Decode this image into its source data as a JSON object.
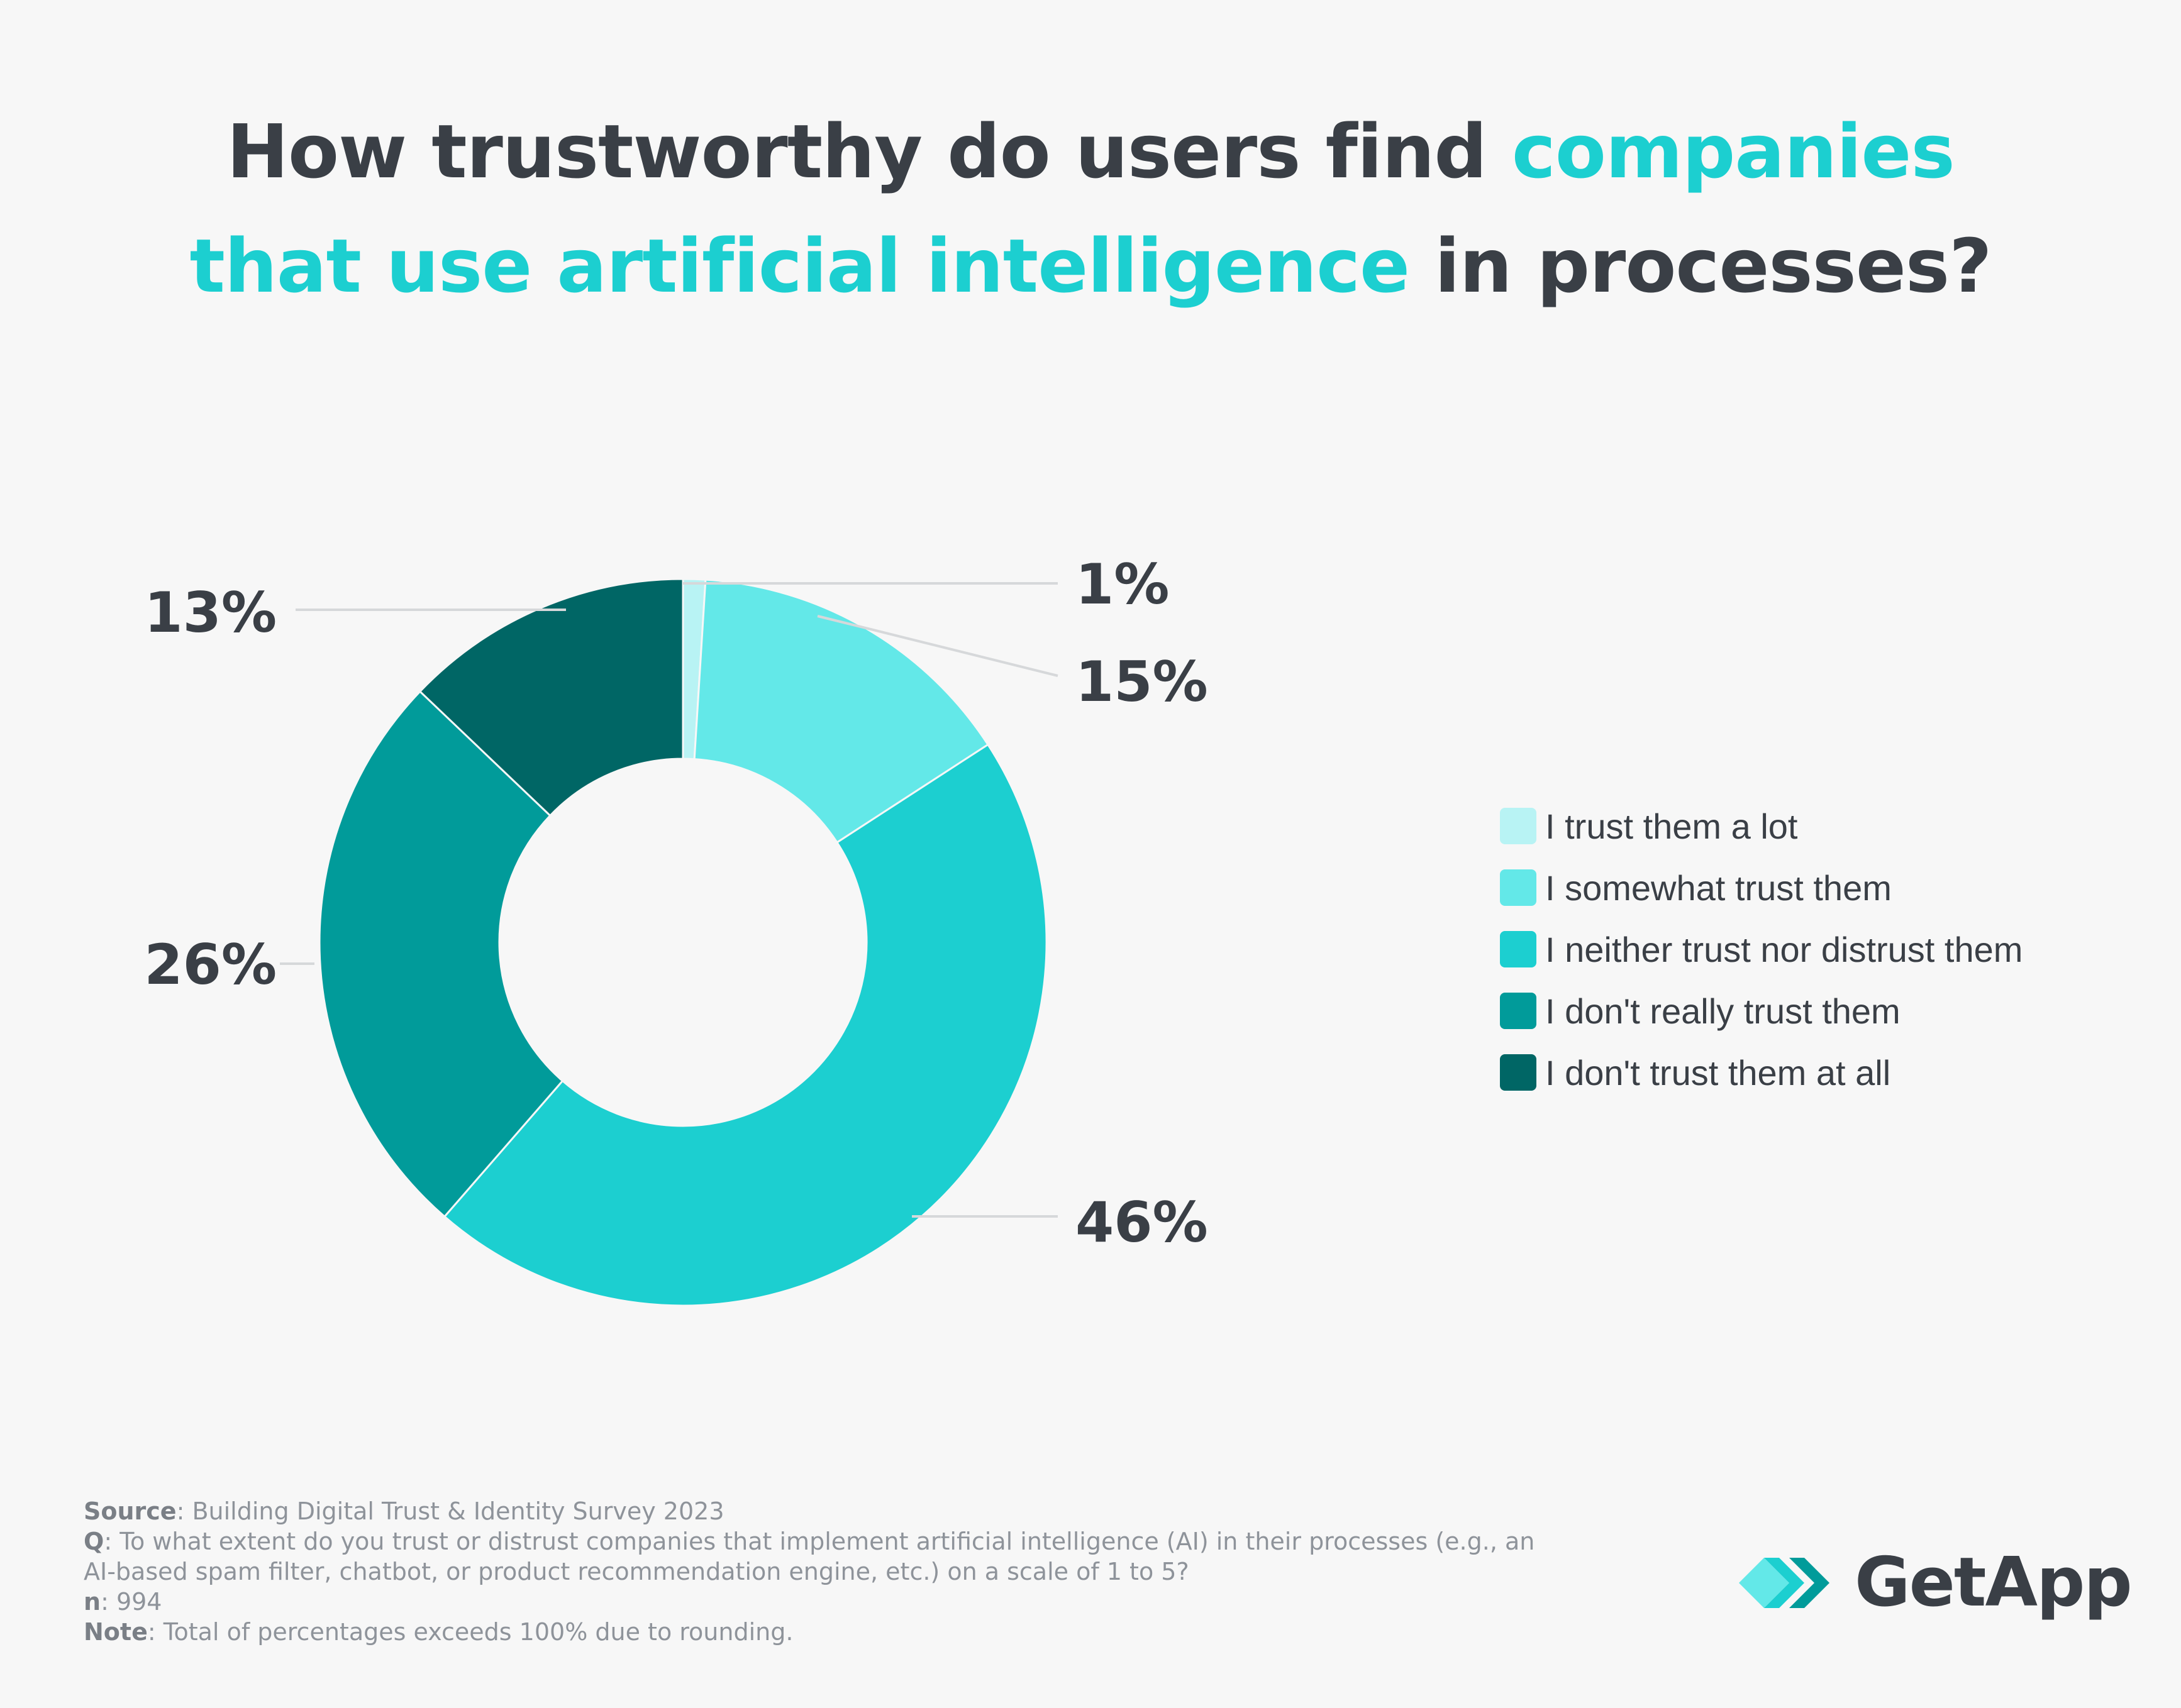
{
  "title": {
    "part1": "How trustworthy do users find ",
    "highlight1": "companies",
    "highlight2": "that use artificial intelligence",
    "part2": " in processes?"
  },
  "colors": {
    "accent": "#1ccfd0",
    "text_dark": "#3a3f46",
    "background": "#f7f7f7"
  },
  "chart_data": {
    "type": "pie",
    "variant": "donut",
    "categories": [
      "I trust them a lot",
      "I somewhat trust them",
      "I neither trust nor distrust them",
      "I don't really trust them",
      "I don't trust them at all"
    ],
    "values": [
      1,
      15,
      46,
      26,
      13
    ],
    "value_labels": [
      "1%",
      "15%",
      "46%",
      "26%",
      "13%"
    ],
    "colors": [
      "#b8f3f4",
      "#63e8e8",
      "#1ccfd0",
      "#019b9a",
      "#006665"
    ],
    "legend_position": "right"
  },
  "footnote": {
    "source_key": "Source",
    "source_text": ": Building Digital Trust & Identity Survey 2023",
    "q_key": "Q",
    "q_text": ": To what extent do you trust or distrust companies that implement artificial intelligence (AI) in their processes (e.g., an AI-based spam filter, chatbot, or product recommendation engine, etc.) on a scale of 1 to 5?",
    "n_key": "n",
    "n_text": ": 994",
    "note_key": "Note",
    "note_text": ": Total of percentages exceeds 100% due to rounding."
  },
  "logo": {
    "name": "GetApp",
    "icon": "getapp-chevrons-icon"
  }
}
